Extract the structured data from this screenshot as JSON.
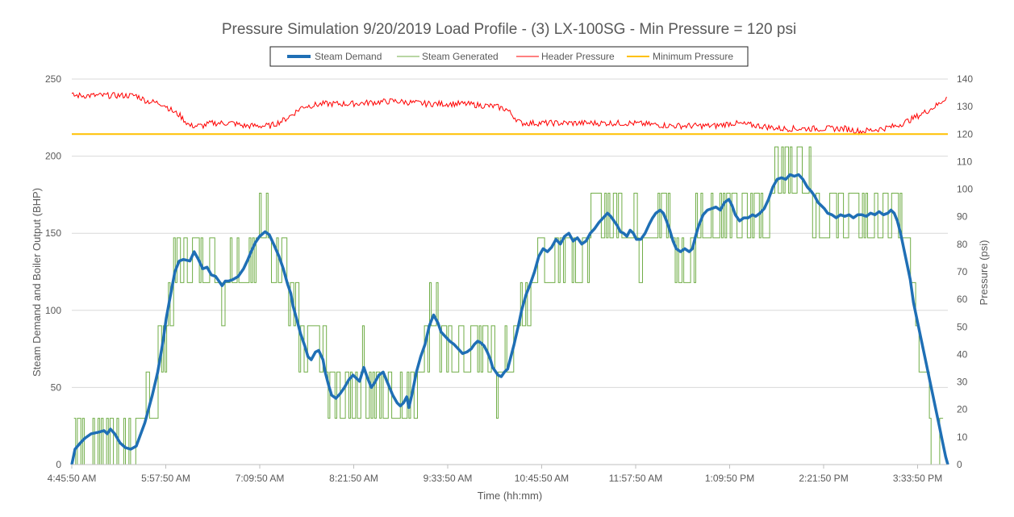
{
  "chart_data": {
    "type": "line",
    "title": "Pressure Simulation 9/20/2019 Load Profile - (3) LX-100SG - Min Pressure = 120 psi",
    "xlabel": "Time (hh:mm)",
    "ylabel": "Steam Demand and Boiler Output (BHP)",
    "y2label": "Pressure (psi)",
    "ylim": [
      0,
      250
    ],
    "y2lim": [
      0,
      140
    ],
    "yticks": [
      0,
      50,
      100,
      150,
      200,
      250
    ],
    "y2ticks": [
      0,
      10,
      20,
      30,
      40,
      50,
      60,
      70,
      80,
      90,
      100,
      110,
      120,
      130,
      140
    ],
    "xticks": [
      "4:45:50 AM",
      "5:57:50 AM",
      "7:09:50 AM",
      "8:21:50 AM",
      "9:33:50 AM",
      "10:45:50 AM",
      "11:57:50 AM",
      "1:09:50 PM",
      "2:21:50 PM",
      "3:33:50 PM"
    ],
    "grid": true,
    "legend_position": "top",
    "x_minutes_range": [
      0,
      670
    ],
    "series": [
      {
        "name": "Steam Demand",
        "axis": "left",
        "color": "#1f6fb5",
        "points": [
          [
            0,
            0
          ],
          [
            3,
            10
          ],
          [
            8,
            14
          ],
          [
            12,
            17
          ],
          [
            18,
            20
          ],
          [
            25,
            21
          ],
          [
            30,
            22
          ],
          [
            33,
            20
          ],
          [
            36,
            23
          ],
          [
            40,
            20
          ],
          [
            45,
            14
          ],
          [
            50,
            11
          ],
          [
            55,
            10
          ],
          [
            60,
            12
          ],
          [
            68,
            27
          ],
          [
            75,
            45
          ],
          [
            80,
            60
          ],
          [
            85,
            80
          ],
          [
            88,
            95
          ],
          [
            92,
            110
          ],
          [
            96,
            125
          ],
          [
            100,
            132
          ],
          [
            104,
            133
          ],
          [
            110,
            132
          ],
          [
            114,
            138
          ],
          [
            118,
            133
          ],
          [
            122,
            127
          ],
          [
            126,
            128
          ],
          [
            130,
            123
          ],
          [
            134,
            122
          ],
          [
            138,
            118
          ],
          [
            140,
            116
          ],
          [
            143,
            119
          ],
          [
            146,
            119
          ],
          [
            150,
            120
          ],
          [
            155,
            122
          ],
          [
            160,
            127
          ],
          [
            164,
            133
          ],
          [
            167,
            138
          ],
          [
            171,
            144
          ],
          [
            175,
            148
          ],
          [
            180,
            151
          ],
          [
            184,
            149
          ],
          [
            188,
            143
          ],
          [
            193,
            135
          ],
          [
            197,
            127
          ],
          [
            201,
            117
          ],
          [
            204,
            111
          ],
          [
            206,
            103
          ],
          [
            210,
            93
          ],
          [
            213,
            85
          ],
          [
            217,
            77
          ],
          [
            220,
            70
          ],
          [
            223,
            68
          ],
          [
            227,
            73
          ],
          [
            230,
            74
          ],
          [
            234,
            68
          ],
          [
            236,
            60
          ],
          [
            239,
            52
          ],
          [
            242,
            45
          ],
          [
            246,
            43
          ],
          [
            250,
            46
          ],
          [
            254,
            50
          ],
          [
            258,
            55
          ],
          [
            262,
            58
          ],
          [
            265,
            56
          ],
          [
            268,
            54
          ],
          [
            272,
            63
          ],
          [
            275,
            57
          ],
          [
            279,
            50
          ],
          [
            282,
            53
          ],
          [
            286,
            58
          ],
          [
            290,
            60
          ],
          [
            293,
            55
          ],
          [
            296,
            50
          ],
          [
            299,
            45
          ],
          [
            303,
            40
          ],
          [
            306,
            38
          ],
          [
            309,
            40
          ],
          [
            312,
            44
          ],
          [
            314,
            37
          ],
          [
            317,
            46
          ],
          [
            321,
            60
          ],
          [
            325,
            70
          ],
          [
            329,
            78
          ],
          [
            333,
            90
          ],
          [
            337,
            97
          ],
          [
            341,
            92
          ],
          [
            344,
            86
          ],
          [
            348,
            83
          ],
          [
            352,
            80
          ],
          [
            356,
            78
          ],
          [
            360,
            75
          ],
          [
            364,
            72
          ],
          [
            368,
            73
          ],
          [
            372,
            75
          ],
          [
            375,
            78
          ],
          [
            378,
            80
          ],
          [
            381,
            79
          ],
          [
            384,
            77
          ],
          [
            387,
            73
          ],
          [
            390,
            68
          ],
          [
            392,
            63
          ],
          [
            394,
            61
          ],
          [
            397,
            58
          ],
          [
            400,
            57
          ],
          [
            403,
            60
          ],
          [
            406,
            62
          ],
          [
            409,
            70
          ],
          [
            412,
            78
          ],
          [
            416,
            90
          ],
          [
            419,
            100
          ],
          [
            423,
            110
          ],
          [
            427,
            117
          ],
          [
            431,
            125
          ],
          [
            435,
            135
          ],
          [
            439,
            140
          ],
          [
            443,
            138
          ],
          [
            447,
            141
          ],
          [
            451,
            146
          ],
          [
            455,
            143
          ],
          [
            459,
            148
          ],
          [
            463,
            150
          ],
          [
            467,
            145
          ],
          [
            471,
            147
          ],
          [
            475,
            143
          ],
          [
            479,
            145
          ],
          [
            483,
            150
          ],
          [
            487,
            153
          ],
          [
            491,
            157
          ],
          [
            495,
            160
          ],
          [
            499,
            163
          ],
          [
            502,
            161
          ],
          [
            505,
            158
          ],
          [
            508,
            155
          ],
          [
            511,
            151
          ],
          [
            514,
            150
          ],
          [
            517,
            148
          ],
          [
            520,
            152
          ],
          [
            523,
            150
          ],
          [
            526,
            146
          ],
          [
            530,
            146
          ],
          [
            534,
            150
          ],
          [
            538,
            156
          ],
          [
            541,
            160
          ],
          [
            544,
            163
          ],
          [
            548,
            165
          ],
          [
            551,
            163
          ],
          [
            554,
            158
          ],
          [
            557,
            152
          ],
          [
            560,
            145
          ],
          [
            563,
            140
          ],
          [
            567,
            138
          ],
          [
            571,
            140
          ],
          [
            575,
            138
          ],
          [
            578,
            140
          ],
          [
            581,
            148
          ],
          [
            584,
            155
          ],
          [
            588,
            162
          ],
          [
            592,
            165
          ],
          [
            596,
            166
          ],
          [
            600,
            167
          ],
          [
            604,
            165
          ],
          [
            608,
            170
          ],
          [
            612,
            172
          ],
          [
            615,
            168
          ],
          [
            618,
            162
          ],
          [
            622,
            158
          ],
          [
            626,
            160
          ],
          [
            630,
            160
          ],
          [
            634,
            162
          ],
          [
            637,
            161
          ],
          [
            641,
            163
          ],
          [
            645,
            166
          ],
          [
            649,
            172
          ],
          [
            653,
            180
          ],
          [
            657,
            185
          ],
          [
            661,
            186
          ],
          [
            665,
            185
          ],
          [
            669,
            188
          ],
          [
            673,
            187
          ],
          [
            677,
            188
          ],
          [
            681,
            185
          ],
          [
            685,
            180
          ],
          [
            689,
            177
          ],
          [
            692,
            174
          ],
          [
            695,
            170
          ],
          [
            698,
            168
          ],
          [
            701,
            166
          ],
          [
            704,
            163
          ],
          [
            708,
            162
          ],
          [
            712,
            160
          ],
          [
            716,
            162
          ],
          [
            720,
            161
          ],
          [
            724,
            162
          ],
          [
            728,
            160
          ],
          [
            732,
            162
          ],
          [
            736,
            162
          ],
          [
            740,
            161
          ],
          [
            744,
            163
          ],
          [
            748,
            162
          ],
          [
            752,
            164
          ],
          [
            756,
            162
          ],
          [
            760,
            163
          ],
          [
            763,
            165
          ],
          [
            766,
            163
          ],
          [
            769,
            158
          ],
          [
            772,
            150
          ],
          [
            775,
            140
          ],
          [
            778,
            130
          ],
          [
            781,
            120
          ],
          [
            784,
            105
          ],
          [
            787,
            95
          ],
          [
            790,
            85
          ],
          [
            793,
            75
          ],
          [
            796,
            65
          ],
          [
            799,
            55
          ],
          [
            802,
            45
          ],
          [
            805,
            35
          ],
          [
            808,
            25
          ],
          [
            811,
            15
          ],
          [
            814,
            5
          ],
          [
            816,
            0
          ]
        ]
      },
      {
        "name": "Steam Generated",
        "axis": "left",
        "color": "#70ad47",
        "levels": [
          30,
          60,
          90,
          118,
          147,
          176,
          206
        ]
      },
      {
        "name": "Header Pressure",
        "axis": "right",
        "color": "#ff0000",
        "points": [
          [
            0,
            134
          ],
          [
            30,
            134
          ],
          [
            55,
            134
          ],
          [
            60,
            134
          ],
          [
            70,
            132
          ],
          [
            85,
            131
          ],
          [
            95,
            128
          ],
          [
            100,
            127
          ],
          [
            110,
            123
          ],
          [
            122,
            123
          ],
          [
            130,
            124
          ],
          [
            150,
            124
          ],
          [
            160,
            123
          ],
          [
            185,
            123
          ],
          [
            197,
            125
          ],
          [
            205,
            127
          ],
          [
            215,
            130
          ],
          [
            235,
            131
          ],
          [
            260,
            131
          ],
          [
            300,
            132
          ],
          [
            330,
            131
          ],
          [
            365,
            131
          ],
          [
            395,
            130
          ],
          [
            405,
            129
          ],
          [
            418,
            124
          ],
          [
            440,
            124
          ],
          [
            480,
            124
          ],
          [
            520,
            124
          ],
          [
            560,
            123
          ],
          [
            600,
            123
          ],
          [
            615,
            124
          ],
          [
            640,
            123
          ],
          [
            660,
            122
          ],
          [
            690,
            122
          ],
          [
            720,
            122
          ],
          [
            735,
            121
          ],
          [
            755,
            122
          ],
          [
            768,
            123
          ],
          [
            780,
            125
          ],
          [
            795,
            128
          ],
          [
            808,
            131
          ],
          [
            816,
            134
          ]
        ]
      },
      {
        "name": "Minimum Pressure",
        "axis": "right",
        "color": "#ffc000",
        "values": [
          120
        ]
      }
    ]
  }
}
